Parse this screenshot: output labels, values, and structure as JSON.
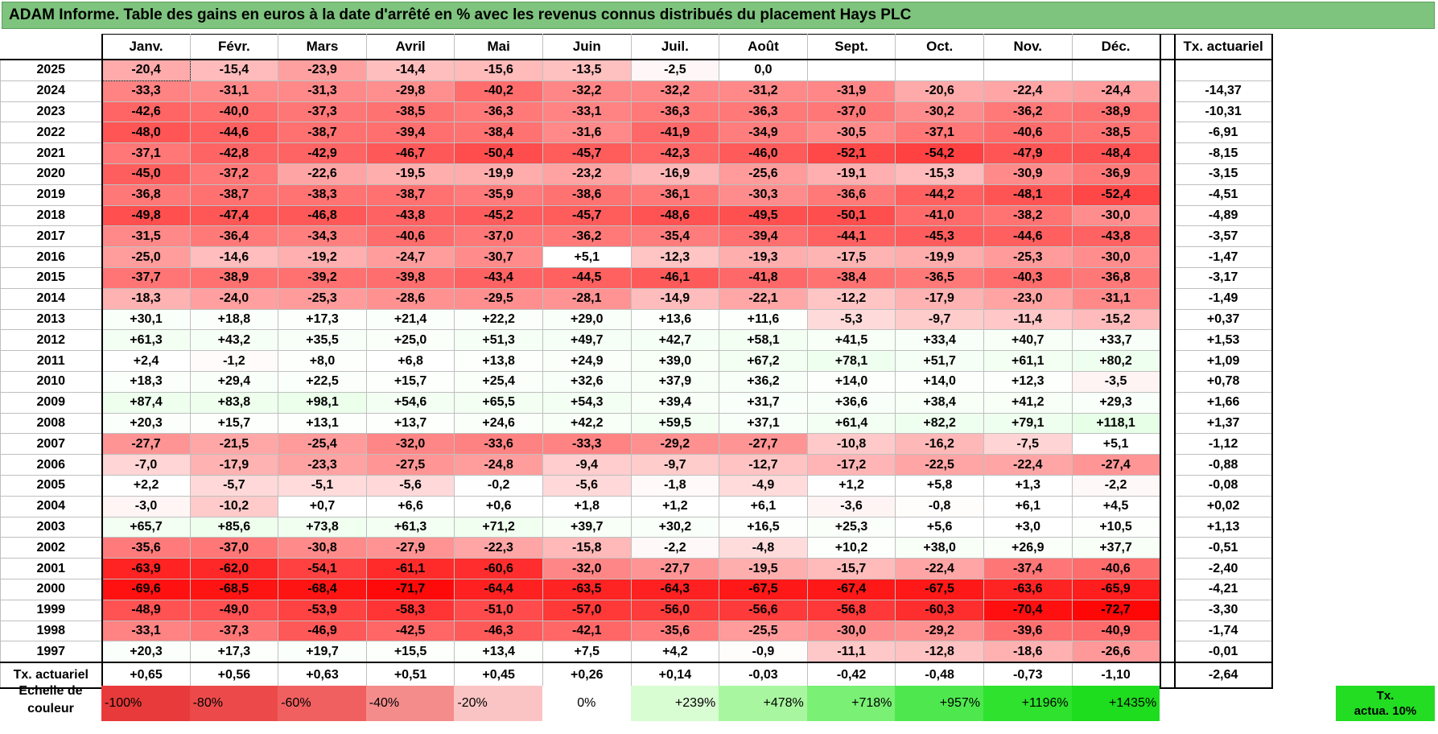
{
  "title": "ADAM Informe. Table des gains en euros à la date d'arrêté en % avec les revenus connus distribués du placement Hays PLC",
  "months": [
    "Janv.",
    "Févr.",
    "Mars",
    "Avril",
    "Mai",
    "Juin",
    "Juil.",
    "Août",
    "Sept.",
    "Oct.",
    "Nov.",
    "Déc."
  ],
  "rate_header": "Tx. actuariel",
  "rows": [
    {
      "year": "2025",
      "values": [
        "-20,4",
        "-15,4",
        "-23,9",
        "-14,4",
        "-15,6",
        "-13,5",
        "-2,5",
        "0,0",
        "",
        "",
        "",
        ""
      ],
      "rate": ""
    },
    {
      "year": "2024",
      "values": [
        "-33,3",
        "-31,1",
        "-31,3",
        "-29,8",
        "-40,2",
        "-32,2",
        "-32,2",
        "-31,2",
        "-31,9",
        "-20,6",
        "-22,4",
        "-24,4"
      ],
      "rate": "-14,37"
    },
    {
      "year": "2023",
      "values": [
        "-42,6",
        "-40,0",
        "-37,3",
        "-38,5",
        "-36,3",
        "-33,1",
        "-36,3",
        "-36,3",
        "-37,0",
        "-30,2",
        "-36,2",
        "-38,9"
      ],
      "rate": "-10,31"
    },
    {
      "year": "2022",
      "values": [
        "-48,0",
        "-44,6",
        "-38,7",
        "-39,4",
        "-38,4",
        "-31,6",
        "-41,9",
        "-34,9",
        "-30,5",
        "-37,1",
        "-40,6",
        "-38,5"
      ],
      "rate": "-6,91"
    },
    {
      "year": "2021",
      "values": [
        "-37,1",
        "-42,8",
        "-42,9",
        "-46,7",
        "-50,4",
        "-45,7",
        "-42,3",
        "-46,0",
        "-52,1",
        "-54,2",
        "-47,9",
        "-48,4"
      ],
      "rate": "-8,15"
    },
    {
      "year": "2020",
      "values": [
        "-45,0",
        "-37,2",
        "-22,6",
        "-19,5",
        "-19,9",
        "-23,2",
        "-16,9",
        "-25,6",
        "-19,1",
        "-15,3",
        "-30,9",
        "-36,9"
      ],
      "rate": "-3,15"
    },
    {
      "year": "2019",
      "values": [
        "-36,8",
        "-38,7",
        "-38,3",
        "-38,7",
        "-35,9",
        "-38,6",
        "-36,1",
        "-30,3",
        "-36,6",
        "-44,2",
        "-48,1",
        "-52,4"
      ],
      "rate": "-4,51"
    },
    {
      "year": "2018",
      "values": [
        "-49,8",
        "-47,4",
        "-46,8",
        "-43,8",
        "-45,2",
        "-45,7",
        "-48,6",
        "-49,5",
        "-50,1",
        "-41,0",
        "-38,2",
        "-30,0"
      ],
      "rate": "-4,89"
    },
    {
      "year": "2017",
      "values": [
        "-31,5",
        "-36,4",
        "-34,3",
        "-40,6",
        "-37,0",
        "-36,2",
        "-35,4",
        "-39,4",
        "-44,1",
        "-45,3",
        "-44,6",
        "-43,8"
      ],
      "rate": "-3,57"
    },
    {
      "year": "2016",
      "values": [
        "-25,0",
        "-14,6",
        "-19,2",
        "-24,7",
        "-30,7",
        "+5,1",
        "-12,3",
        "-19,3",
        "-17,5",
        "-19,9",
        "-25,3",
        "-30,0"
      ],
      "rate": "-1,47"
    },
    {
      "year": "2015",
      "values": [
        "-37,7",
        "-38,9",
        "-39,2",
        "-39,8",
        "-43,4",
        "-44,5",
        "-46,1",
        "-41,8",
        "-38,4",
        "-36,5",
        "-40,3",
        "-36,8"
      ],
      "rate": "-3,17"
    },
    {
      "year": "2014",
      "values": [
        "-18,3",
        "-24,0",
        "-25,3",
        "-28,6",
        "-29,5",
        "-28,1",
        "-14,9",
        "-22,1",
        "-12,2",
        "-17,9",
        "-23,0",
        "-31,1"
      ],
      "rate": "-1,49"
    },
    {
      "year": "2013",
      "values": [
        "+30,1",
        "+18,8",
        "+17,3",
        "+21,4",
        "+22,2",
        "+29,0",
        "+13,6",
        "+11,6",
        "-5,3",
        "-9,7",
        "-11,4",
        "-15,2"
      ],
      "rate": "+0,37"
    },
    {
      "year": "2012",
      "values": [
        "+61,3",
        "+43,2",
        "+35,5",
        "+25,0",
        "+51,3",
        "+49,7",
        "+42,7",
        "+58,1",
        "+41,5",
        "+33,4",
        "+40,7",
        "+33,7"
      ],
      "rate": "+1,53"
    },
    {
      "year": "2011",
      "values": [
        "+2,4",
        "-1,2",
        "+8,0",
        "+6,8",
        "+13,8",
        "+24,9",
        "+39,0",
        "+67,2",
        "+78,1",
        "+51,7",
        "+61,1",
        "+80,2"
      ],
      "rate": "+1,09"
    },
    {
      "year": "2010",
      "values": [
        "+18,3",
        "+29,4",
        "+22,5",
        "+15,7",
        "+25,4",
        "+32,6",
        "+37,9",
        "+36,2",
        "+14,0",
        "+14,0",
        "+12,3",
        "-3,5"
      ],
      "rate": "+0,78"
    },
    {
      "year": "2009",
      "values": [
        "+87,4",
        "+83,8",
        "+98,1",
        "+54,6",
        "+65,5",
        "+54,3",
        "+39,4",
        "+31,7",
        "+36,6",
        "+38,4",
        "+41,2",
        "+29,3"
      ],
      "rate": "+1,66"
    },
    {
      "year": "2008",
      "values": [
        "+20,3",
        "+15,7",
        "+13,1",
        "+13,7",
        "+24,6",
        "+42,2",
        "+59,5",
        "+37,1",
        "+61,4",
        "+82,2",
        "+79,1",
        "+118,1"
      ],
      "rate": "+1,37"
    },
    {
      "year": "2007",
      "values": [
        "-27,7",
        "-21,5",
        "-25,4",
        "-32,0",
        "-33,6",
        "-33,3",
        "-29,2",
        "-27,7",
        "-10,8",
        "-16,2",
        "-7,5",
        "+5,1"
      ],
      "rate": "-1,12"
    },
    {
      "year": "2006",
      "values": [
        "-7,0",
        "-17,9",
        "-23,3",
        "-27,5",
        "-24,8",
        "-9,4",
        "-9,7",
        "-12,7",
        "-17,2",
        "-22,5",
        "-22,4",
        "-27,4"
      ],
      "rate": "-0,88"
    },
    {
      "year": "2005",
      "values": [
        "+2,2",
        "-5,7",
        "-5,1",
        "-5,6",
        "-0,2",
        "-5,6",
        "-1,8",
        "-4,9",
        "+1,2",
        "+5,8",
        "+1,3",
        "-2,2"
      ],
      "rate": "-0,08"
    },
    {
      "year": "2004",
      "values": [
        "-3,0",
        "-10,2",
        "+0,7",
        "+6,6",
        "+0,6",
        "+1,8",
        "+1,2",
        "+6,1",
        "-3,6",
        "-0,8",
        "+6,1",
        "+4,5"
      ],
      "rate": "+0,02"
    },
    {
      "year": "2003",
      "values": [
        "+65,7",
        "+85,6",
        "+73,8",
        "+61,3",
        "+71,2",
        "+39,7",
        "+30,2",
        "+16,5",
        "+25,3",
        "+5,6",
        "+3,0",
        "+10,5"
      ],
      "rate": "+1,13"
    },
    {
      "year": "2002",
      "values": [
        "-35,6",
        "-37,0",
        "-30,8",
        "-27,9",
        "-22,3",
        "-15,8",
        "-2,2",
        "-4,8",
        "+10,2",
        "+38,0",
        "+26,9",
        "+37,7"
      ],
      "rate": "-0,51"
    },
    {
      "year": "2001",
      "values": [
        "-63,9",
        "-62,0",
        "-54,1",
        "-61,1",
        "-60,6",
        "-32,0",
        "-27,7",
        "-19,5",
        "-15,7",
        "-22,4",
        "-37,4",
        "-40,6"
      ],
      "rate": "-2,40"
    },
    {
      "year": "2000",
      "values": [
        "-69,6",
        "-68,5",
        "-68,4",
        "-71,7",
        "-64,4",
        "-63,5",
        "-64,3",
        "-67,5",
        "-67,4",
        "-67,5",
        "-63,6",
        "-65,9"
      ],
      "rate": "-4,21"
    },
    {
      "year": "1999",
      "values": [
        "-48,9",
        "-49,0",
        "-53,9",
        "-58,3",
        "-51,0",
        "-57,0",
        "-56,0",
        "-56,6",
        "-56,8",
        "-60,3",
        "-70,4",
        "-72,7"
      ],
      "rate": "-3,30"
    },
    {
      "year": "1998",
      "values": [
        "-33,1",
        "-37,3",
        "-46,9",
        "-42,5",
        "-46,3",
        "-42,1",
        "-35,6",
        "-25,5",
        "-30,0",
        "-29,2",
        "-39,6",
        "-40,9"
      ],
      "rate": "-1,74"
    },
    {
      "year": "1997",
      "values": [
        "+20,3",
        "+17,3",
        "+19,7",
        "+15,5",
        "+13,4",
        "+7,5",
        "+4,2",
        "-0,9",
        "-11,1",
        "-12,8",
        "-18,6",
        "-26,6"
      ],
      "rate": "-0,01"
    }
  ],
  "footer": {
    "label": "Tx. actuariel",
    "values": [
      "+0,65",
      "+0,56",
      "+0,63",
      "+0,51",
      "+0,45",
      "+0,26",
      "+0,14",
      "-0,03",
      "-0,42",
      "-0,48",
      "-0,73",
      "-1,10"
    ],
    "rate": "-2,64"
  },
  "scale": {
    "label_line1": "Echelle de",
    "label_line2": "couleur",
    "items": [
      {
        "label": "-100%",
        "color": "#e83a3a",
        "align": "l"
      },
      {
        "label": "-80%",
        "color": "#ec4a4a",
        "align": "l"
      },
      {
        "label": "-60%",
        "color": "#f06060",
        "align": "l"
      },
      {
        "label": "-40%",
        "color": "#f58c8c",
        "align": "l"
      },
      {
        "label": "-20%",
        "color": "#fbc4c4",
        "align": "l"
      },
      {
        "label": "0%",
        "color": "#ffffff",
        "align": "c"
      },
      {
        "label": "+239%",
        "color": "#d9fdd3",
        "align": "r"
      },
      {
        "label": "+478%",
        "color": "#a8f7a0",
        "align": "r"
      },
      {
        "label": "+718%",
        "color": "#7af075",
        "align": "r"
      },
      {
        "label": "+957%",
        "color": "#4ee84e",
        "align": "r"
      },
      {
        "label": "+1196%",
        "color": "#2ee22e",
        "align": "r"
      },
      {
        "label": "+1435%",
        "color": "#1edc1e",
        "align": "r"
      }
    ],
    "rate_label_line1": "Tx.",
    "rate_label_line2": "actua. 10%"
  }
}
